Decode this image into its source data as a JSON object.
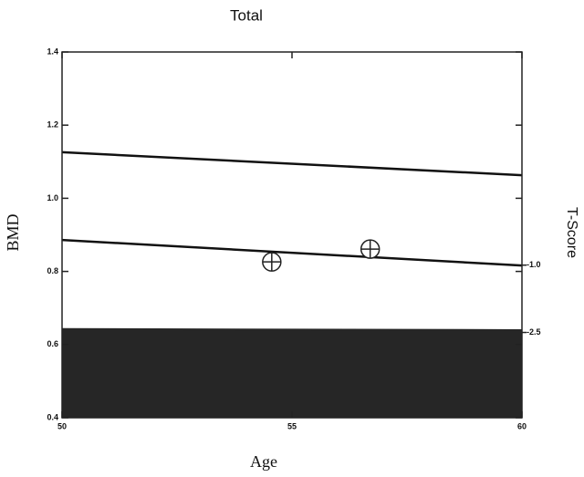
{
  "chart_data": {
    "type": "line",
    "title": "Total",
    "x_label": "Age",
    "y_label": "BMD",
    "y2_label": "T-Score",
    "x": [
      50,
      60
    ],
    "xlim": [
      50,
      60
    ],
    "xticks": [
      50,
      55,
      60
    ],
    "ylim": [
      0.4,
      1.4
    ],
    "yticks": [
      {
        "value": 0.4,
        "label": "0.4"
      },
      {
        "value": 0.6,
        "label": "0.6"
      },
      {
        "value": 0.8,
        "label": "0.8"
      },
      {
        "value": 1,
        "label": "1.0"
      },
      {
        "value": 1.2,
        "label": "1.2"
      },
      {
        "value": 1.4,
        "label": "1.4"
      }
    ],
    "y2lim": [
      -4.4,
      3.75
    ],
    "y2ticks": [
      {
        "value": -1,
        "label": "-1.0"
      },
      {
        "value": -2.5,
        "label": "-2.5"
      }
    ],
    "series": [
      {
        "color": "#111111",
        "values": [
          1.126,
          1.063
        ]
      },
      {
        "color": "#111111",
        "values": [
          0.886,
          0.816
        ]
      },
      {
        "color": "#1a1a1a",
        "fill": true,
        "values": [
          0.645,
          0.642
        ]
      }
    ],
    "points": {
      "color": "#222222",
      "x": [
        54.56,
        56.7
      ],
      "values": [
        0.826,
        0.861
      ]
    }
  }
}
